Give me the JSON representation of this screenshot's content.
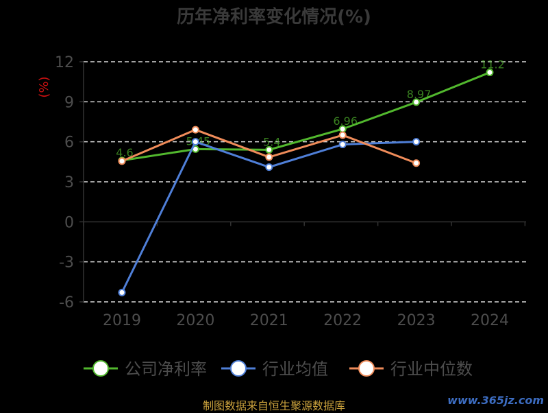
{
  "title": "历年净利率变化情况(%)",
  "source_note": "制图数据来自恒生聚源数据库",
  "watermark": "www.365jz.com",
  "chart_data": {
    "type": "line",
    "title": "历年净利率变化情况(%)",
    "ylabel": "(%)",
    "categories": [
      "2019",
      "2020",
      "2021",
      "2022",
      "2023",
      "2024"
    ],
    "ylim": [
      -6,
      12
    ],
    "yticks": [
      -6,
      -3,
      0,
      3,
      6,
      9,
      12
    ],
    "grid": true,
    "legend_position": "bottom",
    "series": [
      {
        "name": "公司净利率",
        "color": "#52b82e",
        "values": [
          4.6,
          5.45,
          5.4,
          6.96,
          8.97,
          11.2
        ],
        "labels": [
          "4.6",
          "5.45",
          "5.4",
          "6.96",
          "8.97",
          "11.2"
        ]
      },
      {
        "name": "行业均值",
        "color": "#4f7fd8",
        "values": [
          -5.3,
          6.0,
          4.1,
          5.8,
          6.0,
          null
        ]
      },
      {
        "name": "行业中位数",
        "color": "#f08c5a",
        "values": [
          4.55,
          6.9,
          4.85,
          6.5,
          4.4,
          null
        ]
      }
    ]
  }
}
